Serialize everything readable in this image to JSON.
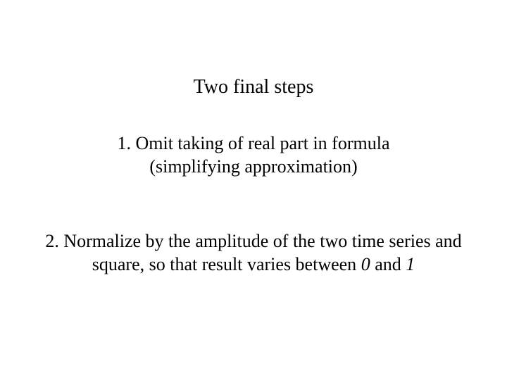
{
  "document": {
    "type": "slide",
    "background_color": "#ffffff",
    "text_color": "#000000",
    "font_family": "Times New Roman",
    "title": {
      "text": "Two final steps",
      "fontsize": 28,
      "align": "center"
    },
    "step1": {
      "line1": "1. Omit taking of real part in formula",
      "line2": "(simplifying approximation)",
      "fontsize": 26,
      "align": "center"
    },
    "step2": {
      "prefix": "2. Normalize by the amplitude of the two time series and square, so that result varies between ",
      "zero": "0",
      "middle": " and ",
      "one": "1",
      "fontsize": 26,
      "align": "center",
      "italic_numbers": true
    }
  }
}
